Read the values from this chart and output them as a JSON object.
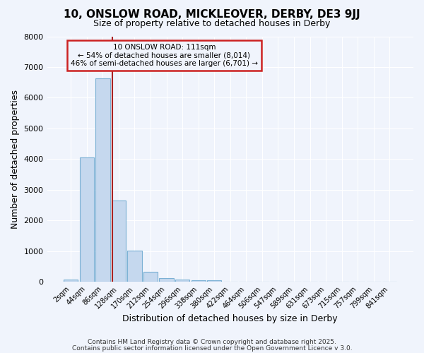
{
  "title1": "10, ONSLOW ROAD, MICKLEOVER, DERBY, DE3 9JJ",
  "title2": "Size of property relative to detached houses in Derby",
  "xlabel": "Distribution of detached houses by size in Derby",
  "ylabel": "Number of detached properties",
  "categories": [
    "2sqm",
    "44sqm",
    "86sqm",
    "128sqm",
    "170sqm",
    "212sqm",
    "254sqm",
    "296sqm",
    "338sqm",
    "380sqm",
    "422sqm",
    "464sqm",
    "506sqm",
    "547sqm",
    "589sqm",
    "631sqm",
    "673sqm",
    "715sqm",
    "757sqm",
    "799sqm",
    "841sqm"
  ],
  "values": [
    70,
    4050,
    6630,
    2650,
    1020,
    320,
    120,
    75,
    50,
    50,
    0,
    0,
    0,
    0,
    0,
    0,
    0,
    0,
    0,
    0,
    0
  ],
  "bar_color": "#c5d8ee",
  "bar_edgecolor": "#7ab0d4",
  "bar_linewidth": 0.8,
  "ylim": [
    0,
    8000
  ],
  "yticks": [
    0,
    1000,
    2000,
    3000,
    4000,
    5000,
    6000,
    7000,
    8000
  ],
  "vline_color": "#aa2222",
  "annotation_title": "10 ONSLOW ROAD: 111sqm",
  "annotation_line2": "← 54% of detached houses are smaller (8,014)",
  "annotation_line3": "46% of semi-detached houses are larger (6,701) →",
  "annotation_box_edgecolor": "#cc2222",
  "background_color": "#f0f4fc",
  "plot_bg_color": "#f0f4fc",
  "grid_color": "#ffffff",
  "footer1": "Contains HM Land Registry data © Crown copyright and database right 2025.",
  "footer2": "Contains public sector information licensed under the Open Government Licence v 3.0."
}
